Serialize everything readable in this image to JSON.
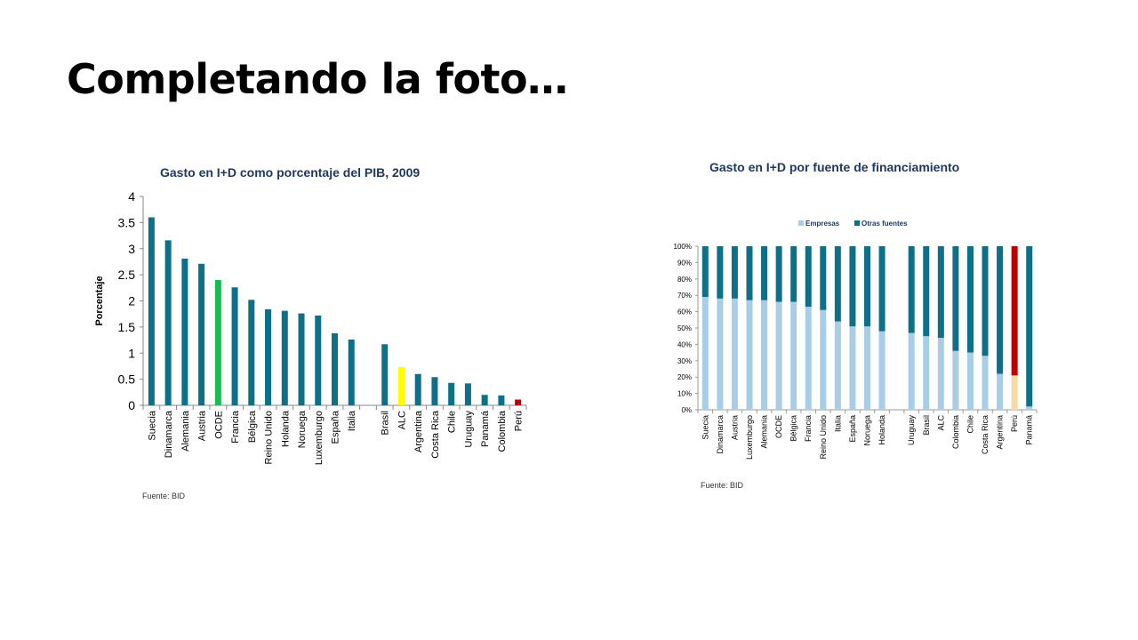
{
  "slide": {
    "title": "Completando la foto…"
  },
  "chart_data": [
    {
      "type": "bar",
      "title": "Gasto en I+D como porcentaje del PIB, 2009",
      "ylabel": "Porcentaje",
      "xlabel": "",
      "ylim": [
        0,
        4
      ],
      "yticks": [
        "0",
        "0.5",
        "1",
        "1.5",
        "2",
        "2.5",
        "3",
        "3.5",
        "4"
      ],
      "categories": [
        "Suecia",
        "Dinamarca",
        "Alemania",
        "Austria",
        "OCDE",
        "Francia",
        "Bélgica",
        "Reino Unido",
        "Holanda",
        "Noruega",
        "Luxemburgo",
        "España",
        "Italia",
        "",
        "Brasil",
        "ALC",
        "Argentina",
        "Costa Rica",
        "Chile",
        "Uruguay",
        "Panamá",
        "Colombia",
        "Perú"
      ],
      "values": [
        3.6,
        3.16,
        2.81,
        2.71,
        2.4,
        2.26,
        2.02,
        1.84,
        1.81,
        1.76,
        1.72,
        1.38,
        1.26,
        null,
        1.17,
        0.73,
        0.6,
        0.54,
        0.43,
        0.42,
        0.2,
        0.19,
        0.11
      ],
      "colors": {
        "default": "#0e6f88",
        "OCDE": "#1db954",
        "ALC": "#ffff00",
        "Perú": "#c00000"
      },
      "source": "Fuente: BID"
    },
    {
      "type": "bar",
      "stacked": true,
      "title": "Gasto en I+D por fuente de financiamiento",
      "xlabel": "",
      "ylabel": "",
      "ylim": [
        0,
        100
      ],
      "yticks": [
        "0%",
        "10%",
        "20%",
        "30%",
        "40%",
        "50%",
        "60%",
        "70%",
        "80%",
        "90%",
        "100%"
      ],
      "legend_position": "top",
      "categories": [
        "Suecia",
        "Dinamarca",
        "Austria",
        "Luxemburgo",
        "Alemania",
        "OCDE",
        "Bélgica",
        "Francia",
        "Reino Unido",
        "Italia",
        "España",
        "Noruega",
        "Holanda",
        "",
        "Uruguay",
        "Brasil",
        "ALC",
        "Colombia",
        "Chile",
        "Costa Rica",
        "Argentina",
        "Perú",
        "Panamá"
      ],
      "series": [
        {
          "name": "Empresas",
          "color": "#a8cde6",
          "values": [
            69,
            68,
            68,
            67,
            67,
            66,
            66,
            63,
            61,
            54,
            51,
            51,
            48,
            null,
            47,
            45,
            44,
            36,
            35,
            33,
            22,
            21,
            2
          ]
        },
        {
          "name": "Otras fuentes",
          "color": "#0e6f88",
          "values": [
            31,
            32,
            32,
            33,
            33,
            34,
            34,
            37,
            39,
            46,
            49,
            49,
            52,
            null,
            53,
            55,
            56,
            64,
            65,
            67,
            78,
            79,
            98
          ]
        }
      ],
      "highlight": {
        "category": "Perú",
        "colors": {
          "Empresas": "#f7d9a8",
          "Otras fuentes": "#c00000"
        }
      },
      "source": "Fuente: BID"
    }
  ]
}
